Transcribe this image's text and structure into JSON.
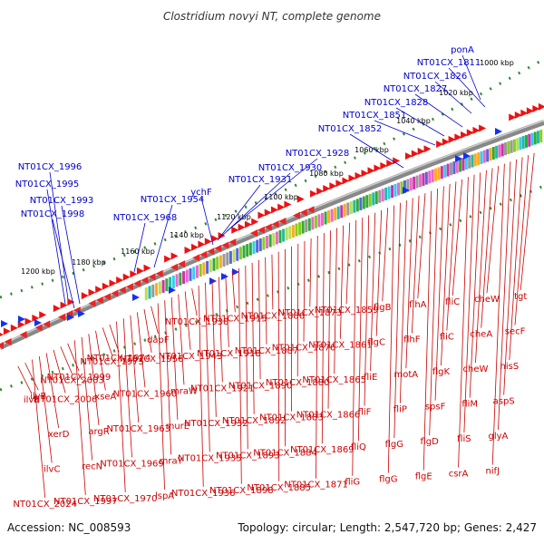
{
  "title": "Clostridium novyi NT, complete genome",
  "footer": {
    "accession": "Accession: NC_008593",
    "topology": "Topology: circular; Length: 2,547,720 bp; Genes: 2,427"
  },
  "colors": {
    "blue_label": "#0000cc",
    "red_label": "#cc0000",
    "backbone": "#777777",
    "forward_gene": "#ee1111",
    "reverse_gene": "#1133ee",
    "tick_dot": "#338833"
  },
  "ticks": [
    "1000 kbp",
    "1020 kbp",
    "1040 kbp",
    "1060 kbp",
    "1080 kbp",
    "1100 kbp",
    "1120 kbp",
    "1140 kbp",
    "1160 kbp",
    "1180 kbp",
    "1200 kbp"
  ],
  "blue_labels": [
    "ponA",
    "NT01CX_1811",
    "NT01CX_1826",
    "NT01CX_1827",
    "NT01CX_1828",
    "NT01CX_1851",
    "NT01CX_1852",
    "NT01CX_1928",
    "NT01CX_1930",
    "NT01CX_1931",
    "ychF",
    "NT01CX_1954",
    "NT01CX_1968",
    "NT01CX_1996",
    "NT01CX_1995",
    "NT01CX_1993",
    "NT01CX_1998"
  ],
  "red_labels": [
    "tgt",
    "secF",
    "hisS",
    "aspS",
    "glyA",
    "nifJ",
    "cheW",
    "cheA",
    "cheW",
    "fliM",
    "fliS",
    "csrA",
    "fliC",
    "fliC",
    "flgK",
    "spsF",
    "flgD",
    "flgE",
    "flhA",
    "flhF",
    "motA",
    "fliP",
    "flgG",
    "flgG",
    "flgB",
    "flgC",
    "fliE",
    "fliF",
    "fliQ",
    "fliG",
    "NT01CX_1859",
    "NT01CX_1861",
    "NT01CX_1865",
    "NT01CX_1866",
    "NT01CX_1869",
    "NT01CX_1871",
    "NT01CX_1873",
    "NT01CX_1876",
    "NT01CX_1880",
    "NT01CX_1883",
    "NT01CX_1884",
    "NT01CX_1885",
    "NT01CX_1886",
    "NT01CX_1887",
    "NT01CX_1890",
    "NT01CX_1892",
    "NT01CX_1893",
    "NT01CX_1898",
    "NT01CX_1915",
    "NT01CX_1918",
    "NT01CX_1921",
    "NT01CX_1932",
    "NT01CX_1935",
    "NT01CX_1936",
    "NT01CX_1938",
    "NT01CX_1943",
    "mraW",
    "murE",
    "mraY",
    "lspA",
    "dapF",
    "NT01CX_1956",
    "NT01CX_1960",
    "NT01CX_1963",
    "NT01CX_1969",
    "NT01CX_1970",
    "NT01CX_1974",
    "NT01CX_1975",
    "xseA",
    "argR",
    "recN",
    "NT01CX_1997",
    "NT01CX_1999",
    "NT01CX_2003",
    "NT01CX_2006",
    "xerD",
    "ilvC",
    "NT01CX_2024",
    "ilvB",
    "ilvE"
  ]
}
